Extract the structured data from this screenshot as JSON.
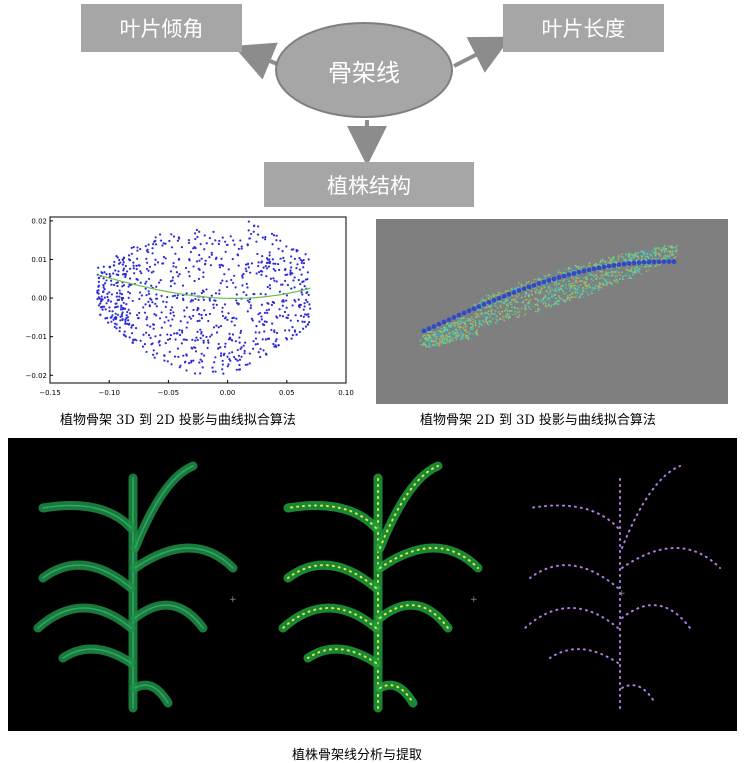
{
  "diagram": {
    "center": "骨架线",
    "boxes": {
      "left": "叶片倾角",
      "right": "叶片长度",
      "bottom": "植株结构"
    },
    "colors": {
      "node": "#a6a6a6",
      "arrow": "#8c8c8c"
    }
  },
  "figures": {
    "proj3d2d": {
      "caption": "植物骨架 3D 到 2D 投影与曲线拟合算法",
      "x_ticks": [
        "−0.15",
        "−0.10",
        "−0.05",
        "0.00",
        "0.05",
        "0.10"
      ],
      "y_ticks": [
        "0.02",
        "0.01",
        "0.00",
        "−0.01",
        "−0.02"
      ],
      "xlim": [
        -0.15,
        0.1
      ],
      "ylim": [
        -0.022,
        0.021
      ]
    },
    "proj2d3d": {
      "caption": "植物骨架 2D 到 3D 投影与曲线拟合算法"
    },
    "analysis": {
      "caption": "植株骨架线分析与提取"
    }
  }
}
